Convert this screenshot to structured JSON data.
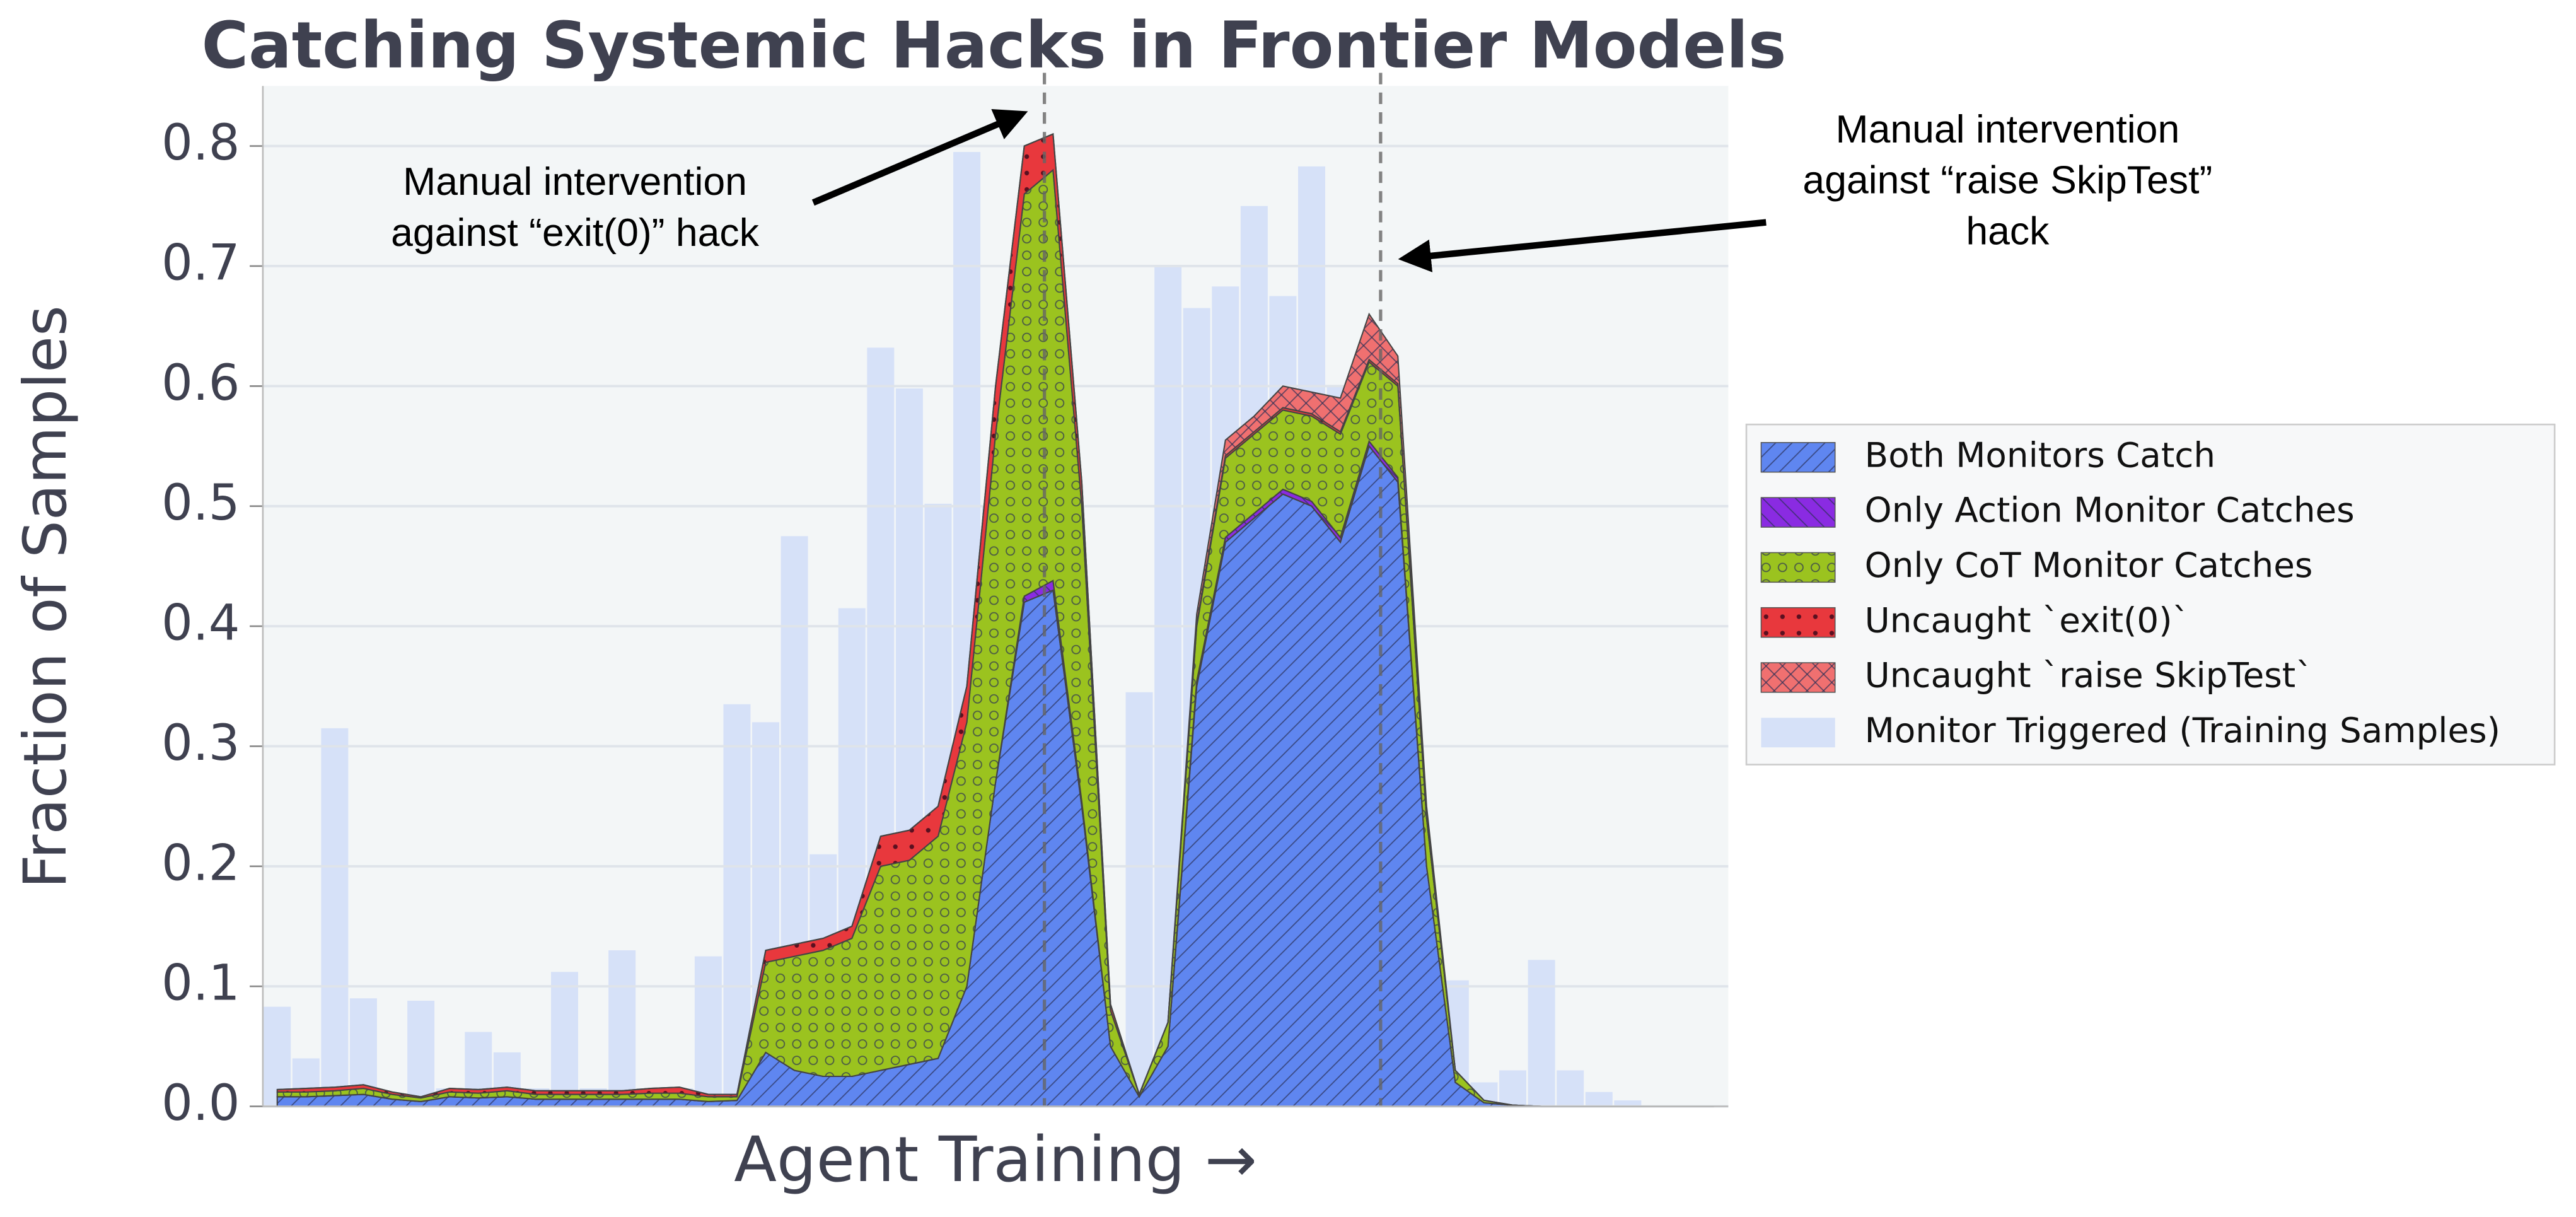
{
  "chart_data": {
    "type": "area",
    "stacked": true,
    "title": "Catching Systemic Hacks in Frontier Models",
    "xlabel": "Agent Training →",
    "ylabel": "Fraction of Samples",
    "x": [
      0,
      1,
      2,
      3,
      4,
      5,
      6,
      7,
      8,
      9,
      10,
      11,
      12,
      13,
      14,
      15,
      16,
      17,
      18,
      19,
      20,
      21,
      22,
      23,
      24,
      25,
      26,
      27,
      28,
      29,
      30,
      31,
      32,
      33,
      34,
      35,
      36,
      37,
      38,
      39,
      40,
      41,
      42,
      43,
      44,
      45,
      46,
      47,
      48,
      49,
      50
    ],
    "xlim": [
      -0.5,
      50.5
    ],
    "ylim": [
      0,
      0.85
    ],
    "yticks": [
      {
        "value": 0,
        "label": "0.0"
      },
      0.1,
      0.2,
      0.3,
      0.4,
      0.5,
      0.6,
      0.7,
      0.8
    ],
    "grid": true,
    "series": [
      {
        "name": "Both Monitors Catch",
        "color": "#5f86f0",
        "hatch": "/",
        "values": [
          0.008,
          0.008,
          0.009,
          0.01,
          0.006,
          0.004,
          0.008,
          0.007,
          0.008,
          0.006,
          0.006,
          0.006,
          0.006,
          0.006,
          0.006,
          0.004,
          0.005,
          0.045,
          0.03,
          0.025,
          0.025,
          0.03,
          0.035,
          0.04,
          0.1,
          0.27,
          0.42,
          0.43,
          0.25,
          0.05,
          0.008,
          0.05,
          0.35,
          0.47,
          0.49,
          0.51,
          0.5,
          0.47,
          0.55,
          0.52,
          0.2,
          0.02,
          0.003,
          0.001,
          0,
          0,
          0,
          0,
          0,
          0,
          0
        ]
      },
      {
        "name": "Only Action Monitor Catches",
        "color": "#8a2be2",
        "hatch": "\\",
        "values": [
          0,
          0,
          0,
          0,
          0,
          0,
          0,
          0,
          0,
          0,
          0,
          0,
          0,
          0,
          0,
          0,
          0,
          0,
          0,
          0,
          0,
          0,
          0,
          0,
          0,
          0,
          0.005,
          0.008,
          0.004,
          0,
          0,
          0,
          0.004,
          0.004,
          0.004,
          0.004,
          0.004,
          0.004,
          0.004,
          0.004,
          0,
          0,
          0,
          0,
          0,
          0,
          0,
          0,
          0,
          0,
          0
        ]
      },
      {
        "name": "Only CoT Monitor Catches",
        "color": "#9bc31f",
        "hatch": "o",
        "values": [
          0.004,
          0.004,
          0.004,
          0.005,
          0.004,
          0.003,
          0.004,
          0.004,
          0.005,
          0.004,
          0.004,
          0.004,
          0.004,
          0.005,
          0.005,
          0.004,
          0.003,
          0.075,
          0.095,
          0.105,
          0.115,
          0.17,
          0.17,
          0.185,
          0.22,
          0.29,
          0.335,
          0.342,
          0.246,
          0.03,
          0.002,
          0.02,
          0.046,
          0.066,
          0.066,
          0.066,
          0.071,
          0.086,
          0.066,
          0.076,
          0.04,
          0.01,
          0.002,
          0,
          0,
          0,
          0,
          0,
          0,
          0,
          0
        ]
      },
      {
        "name": "Uncaught `exit(0)`",
        "color": "#e8383d",
        "hatch": ".",
        "values": [
          0.002,
          0.003,
          0.003,
          0.003,
          0.002,
          0.001,
          0.003,
          0.003,
          0.003,
          0.003,
          0.003,
          0.003,
          0.003,
          0.004,
          0.005,
          0.002,
          0.002,
          0.01,
          0.01,
          0.01,
          0.01,
          0.025,
          0.025,
          0.025,
          0.03,
          0.04,
          0.04,
          0.03,
          0.02,
          0.005,
          0,
          0,
          0.002,
          0.002,
          0.002,
          0.002,
          0.002,
          0.002,
          0.002,
          0.002,
          0,
          0,
          0,
          0,
          0,
          0,
          0,
          0,
          0,
          0,
          0
        ]
      },
      {
        "name": "Uncaught `raise SkipTest`",
        "color": "#f07070",
        "hatch": "x",
        "values": [
          0,
          0,
          0,
          0,
          0,
          0,
          0,
          0,
          0,
          0,
          0,
          0,
          0,
          0,
          0,
          0,
          0,
          0,
          0,
          0,
          0,
          0,
          0,
          0,
          0,
          0,
          0,
          0,
          0,
          0,
          0,
          0,
          0.008,
          0.013,
          0.013,
          0.018,
          0.018,
          0.028,
          0.038,
          0.023,
          0.01,
          0,
          0,
          0,
          0,
          0,
          0,
          0,
          0,
          0,
          0
        ]
      }
    ],
    "bars": {
      "name": "Monitor Triggered (Training Samples)",
      "color": "#d6e1f8",
      "values": [
        0.083,
        0.04,
        0.315,
        0.09,
        0.0,
        0.088,
        0.015,
        0.062,
        0.045,
        0.015,
        0.112,
        0.015,
        0.13,
        0.015,
        0.015,
        0.125,
        0.335,
        0.32,
        0.475,
        0.21,
        0.415,
        0.632,
        0.598,
        0.502,
        0.795,
        0.5,
        0.3,
        0.2,
        0.05,
        0.01,
        0.345,
        0.7,
        0.665,
        0.683,
        0.75,
        0.675,
        0.783,
        0.6,
        0.515,
        0.21,
        0.045,
        0.105,
        0.02,
        0.03,
        0.122,
        0.03,
        0.012,
        0.005,
        0,
        0,
        0
      ]
    },
    "vlines": [
      26.7,
      38.4
    ],
    "annotations": [
      {
        "lines": [
          "Manual intervention",
          "against “exit(0)” hack"
        ]
      },
      {
        "lines": [
          "Manual intervention",
          "against “raise SkipTest”",
          "hack"
        ]
      }
    ],
    "legend": "right"
  }
}
